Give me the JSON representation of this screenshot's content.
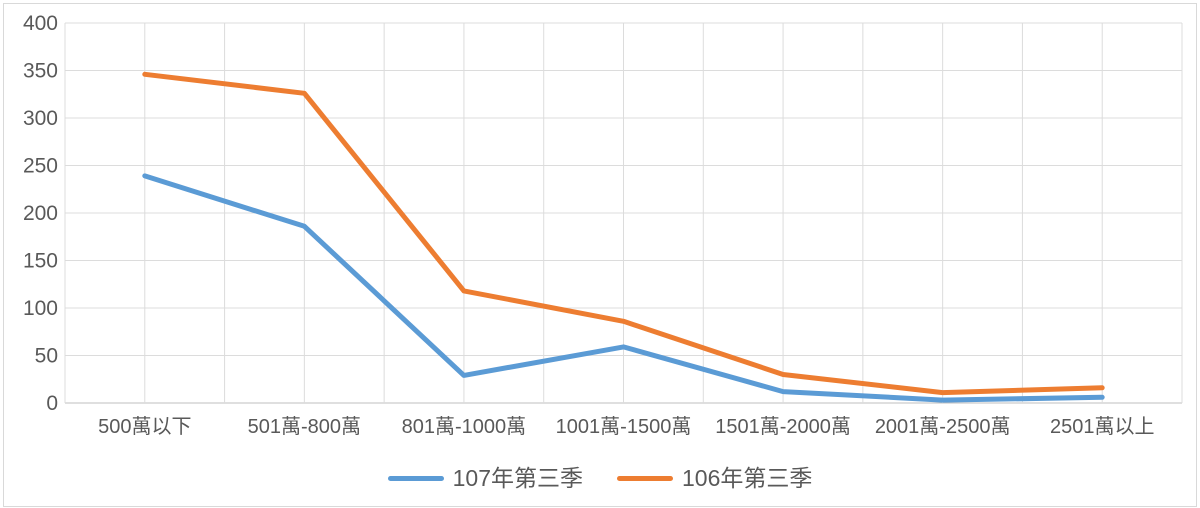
{
  "chart_data": {
    "type": "line",
    "title": "",
    "xlabel": "",
    "ylabel": "",
    "categories": [
      "500萬以下",
      "501萬-800萬",
      "801萬-1000萬",
      "1001萬-1500萬",
      "1501萬-2000萬",
      "2001萬-2500萬",
      "2501萬以上"
    ],
    "series": [
      {
        "name": "107年第三季",
        "color": "#5B9BD5",
        "values": [
          239,
          186,
          29,
          59,
          12,
          3,
          6
        ]
      },
      {
        "name": "106年第三季",
        "color": "#ED7D31",
        "values": [
          346,
          326,
          118,
          86,
          30,
          11,
          16
        ]
      }
    ],
    "ylim": [
      0,
      400
    ],
    "ytick_step": 50,
    "ytick_labels": [
      "0",
      "50",
      "100",
      "150",
      "200",
      "250",
      "300",
      "350",
      "400"
    ],
    "grid": {
      "horizontal": true,
      "vertical": true,
      "vertical_minor": true
    },
    "legend_position": "bottom"
  },
  "style": {
    "axis_text_color": "#595959",
    "gridline_color": "#DCDCDC",
    "axis_line_color": "#BFBFBF",
    "border_color": "#D9D9D9",
    "background": "#FFFFFF"
  }
}
